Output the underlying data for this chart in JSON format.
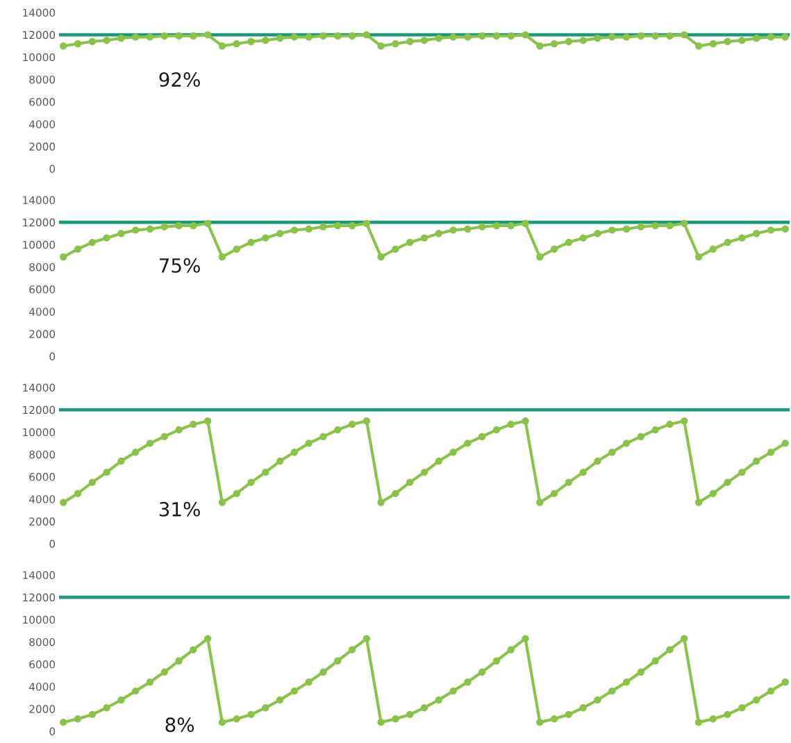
{
  "chart_data": [
    {
      "type": "line",
      "annotations": [
        "92%"
      ],
      "categories": [
        null,
        null,
        null,
        null,
        null,
        null,
        null,
        null,
        null,
        null,
        null,
        null,
        null,
        null,
        null,
        null,
        null,
        null,
        null,
        null,
        null,
        null,
        null,
        null,
        null,
        null,
        null,
        null,
        null,
        null,
        null,
        null,
        null,
        null,
        null,
        null,
        null,
        null,
        null,
        null,
        null,
        null,
        null,
        null,
        null,
        null,
        null,
        null,
        null,
        null,
        null
      ],
      "series": [
        {
          "color": "#8bc34a",
          "values": [
            11000,
            11200,
            11400,
            11500,
            11700,
            11800,
            11800,
            11900,
            11900,
            11900,
            12000,
            11000,
            11200,
            11400,
            11500,
            11700,
            11800,
            11800,
            11900,
            11900,
            11900,
            12000,
            11000,
            11200,
            11400,
            11500,
            11700,
            11800,
            11800,
            11900,
            11900,
            11900,
            12000,
            11000,
            11200,
            11400,
            11500,
            11700,
            11800,
            11800,
            11900,
            11900,
            11900,
            12000,
            11000,
            11200,
            11400,
            11500,
            11700,
            11800,
            11800
          ]
        }
      ],
      "ref_lines": [
        {
          "axis": "y",
          "value": 12000,
          "color": "#1a9a7a"
        }
      ],
      "ylim": [
        0,
        14000
      ],
      "yticks": [
        0,
        2000,
        4000,
        6000,
        8000,
        10000,
        12000,
        14000
      ],
      "tick_labels": "y",
      "grid": false,
      "legend": false,
      "marker": "circle",
      "line_style": "solid"
    },
    {
      "type": "line",
      "annotations": [
        "75%"
      ],
      "categories": [
        null,
        null,
        null,
        null,
        null,
        null,
        null,
        null,
        null,
        null,
        null,
        null,
        null,
        null,
        null,
        null,
        null,
        null,
        null,
        null,
        null,
        null,
        null,
        null,
        null,
        null,
        null,
        null,
        null,
        null,
        null,
        null,
        null,
        null,
        null,
        null,
        null,
        null,
        null,
        null,
        null,
        null,
        null,
        null,
        null,
        null,
        null,
        null,
        null,
        null,
        null
      ],
      "series": [
        {
          "color": "#8bc34a",
          "values": [
            8900,
            9600,
            10200,
            10600,
            11000,
            11300,
            11400,
            11600,
            11700,
            11700,
            11900,
            8900,
            9600,
            10200,
            10600,
            11000,
            11300,
            11400,
            11600,
            11700,
            11700,
            11900,
            8900,
            9600,
            10200,
            10600,
            11000,
            11300,
            11400,
            11600,
            11700,
            11700,
            11900,
            8900,
            9600,
            10200,
            10600,
            11000,
            11300,
            11400,
            11600,
            11700,
            11700,
            11900,
            8900,
            9600,
            10200,
            10600,
            11000,
            11300,
            11400
          ]
        }
      ],
      "ref_lines": [
        {
          "axis": "y",
          "value": 12000,
          "color": "#1a9a7a"
        }
      ],
      "ylim": [
        0,
        14000
      ],
      "yticks": [
        0,
        2000,
        4000,
        6000,
        8000,
        10000,
        12000,
        14000
      ],
      "tick_labels": "y",
      "grid": false,
      "legend": false,
      "marker": "circle",
      "line_style": "solid"
    },
    {
      "type": "line",
      "annotations": [
        "31%"
      ],
      "categories": [
        null,
        null,
        null,
        null,
        null,
        null,
        null,
        null,
        null,
        null,
        null,
        null,
        null,
        null,
        null,
        null,
        null,
        null,
        null,
        null,
        null,
        null,
        null,
        null,
        null,
        null,
        null,
        null,
        null,
        null,
        null,
        null,
        null,
        null,
        null,
        null,
        null,
        null,
        null,
        null,
        null,
        null,
        null,
        null,
        null,
        null,
        null,
        null,
        null,
        null,
        null
      ],
      "series": [
        {
          "color": "#8bc34a",
          "values": [
            3700,
            4500,
            5500,
            6400,
            7400,
            8200,
            9000,
            9600,
            10200,
            10700,
            11000,
            3700,
            4500,
            5500,
            6400,
            7400,
            8200,
            9000,
            9600,
            10200,
            10700,
            11000,
            3700,
            4500,
            5500,
            6400,
            7400,
            8200,
            9000,
            9600,
            10200,
            10700,
            11000,
            3700,
            4500,
            5500,
            6400,
            7400,
            8200,
            9000,
            9600,
            10200,
            10700,
            11000,
            3700,
            4500,
            5500,
            6400,
            7400,
            8200,
            9000
          ]
        }
      ],
      "ref_lines": [
        {
          "axis": "y",
          "value": 12000,
          "color": "#1a9a7a"
        }
      ],
      "ylim": [
        0,
        14000
      ],
      "yticks": [
        0,
        2000,
        4000,
        6000,
        8000,
        10000,
        12000,
        14000
      ],
      "tick_labels": "y",
      "grid": false,
      "legend": false,
      "marker": "circle",
      "line_style": "solid"
    },
    {
      "type": "line",
      "annotations": [
        "8%"
      ],
      "categories": [
        null,
        null,
        null,
        null,
        null,
        null,
        null,
        null,
        null,
        null,
        null,
        null,
        null,
        null,
        null,
        null,
        null,
        null,
        null,
        null,
        null,
        null,
        null,
        null,
        null,
        null,
        null,
        null,
        null,
        null,
        null,
        null,
        null,
        null,
        null,
        null,
        null,
        null,
        null,
        null,
        null,
        null,
        null,
        null,
        null,
        null,
        null,
        null,
        null,
        null,
        null
      ],
      "series": [
        {
          "color": "#8bc34a",
          "values": [
            800,
            1100,
            1500,
            2100,
            2800,
            3600,
            4400,
            5300,
            6300,
            7300,
            8300,
            800,
            1100,
            1500,
            2100,
            2800,
            3600,
            4400,
            5300,
            6300,
            7300,
            8300,
            800,
            1100,
            1500,
            2100,
            2800,
            3600,
            4400,
            5300,
            6300,
            7300,
            8300,
            800,
            1100,
            1500,
            2100,
            2800,
            3600,
            4400,
            5300,
            6300,
            7300,
            8300,
            800,
            1100,
            1500,
            2100,
            2800,
            3600,
            4400
          ]
        }
      ],
      "ref_lines": [
        {
          "axis": "y",
          "value": 12000,
          "color": "#1a9a7a"
        }
      ],
      "ylim": [
        0,
        14000
      ],
      "yticks": [
        0,
        2000,
        4000,
        6000,
        8000,
        10000,
        12000,
        14000
      ],
      "tick_labels": "y",
      "grid": false,
      "legend": false,
      "marker": "circle",
      "line_style": "solid"
    }
  ]
}
